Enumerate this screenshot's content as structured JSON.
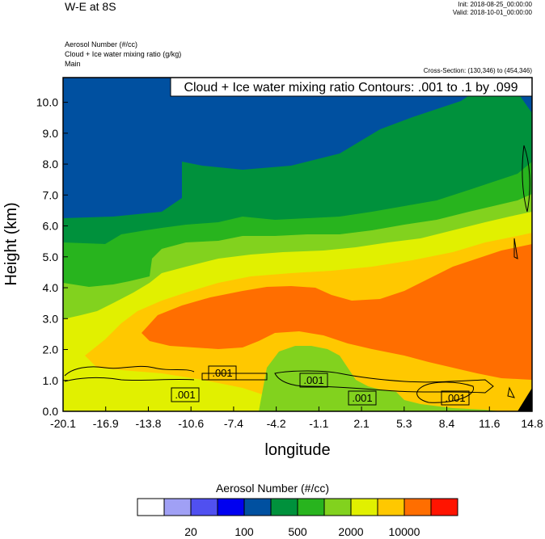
{
  "header": {
    "title": "W-E at 8S",
    "init": "Init: 2018-08-25_00:00:00",
    "valid": "Valid: 2018-10-01_00:00:00",
    "field_lines": [
      "Aerosol Number   (#/cc)",
      "Cloud + Ice water mixing ratio   (g/kg)",
      "Main"
    ],
    "cross_section": "Cross-Section: (130,346) to (454,346)"
  },
  "chart_data": {
    "type": "heatmap",
    "title": "W-E at 8S",
    "xlabel": "longitude",
    "ylabel": "Height (km)",
    "xticks": [
      "-20.1",
      "-16.9",
      "-13.8",
      "-10.6",
      "-7.4",
      "-4.2",
      "-1.1",
      "2.1",
      "5.3",
      "8.4",
      "11.6",
      "14.8"
    ],
    "yticks": [
      "0.0",
      "1.0",
      "2.0",
      "3.0",
      "4.0",
      "5.0",
      "6.0",
      "7.0",
      "8.0",
      "9.0",
      "10.0"
    ],
    "xlim": [
      -20.1,
      14.8
    ],
    "ylim": [
      0.0,
      10.8
    ],
    "contour_info": "Cloud + Ice water mixing ratio Contours: .001 to .1 by .099",
    "contour_labels": [
      ".001",
      ".001",
      ".001",
      ".001",
      ".001"
    ],
    "colorbar": {
      "title": "Aerosol Number  (#/cc)",
      "labels": [
        "20",
        "100",
        "500",
        "2000",
        "10000"
      ],
      "colors": [
        "#ffffff",
        "#a0a0f5",
        "#5050f0",
        "#0000f0",
        "#0050a0",
        "#00913c",
        "#28b41e",
        "#82d21e",
        "#e1f000",
        "#ffc800",
        "#ff6e00",
        "#ff1400"
      ]
    },
    "region_colors": {
      "top": "#0050a0",
      "green_dark": "#00913c",
      "green_mid": "#28b41e",
      "green_light": "#82d21e",
      "yellow_green": "#e1f000",
      "orange_light": "#ffc800",
      "orange": "#ff6e00"
    }
  }
}
